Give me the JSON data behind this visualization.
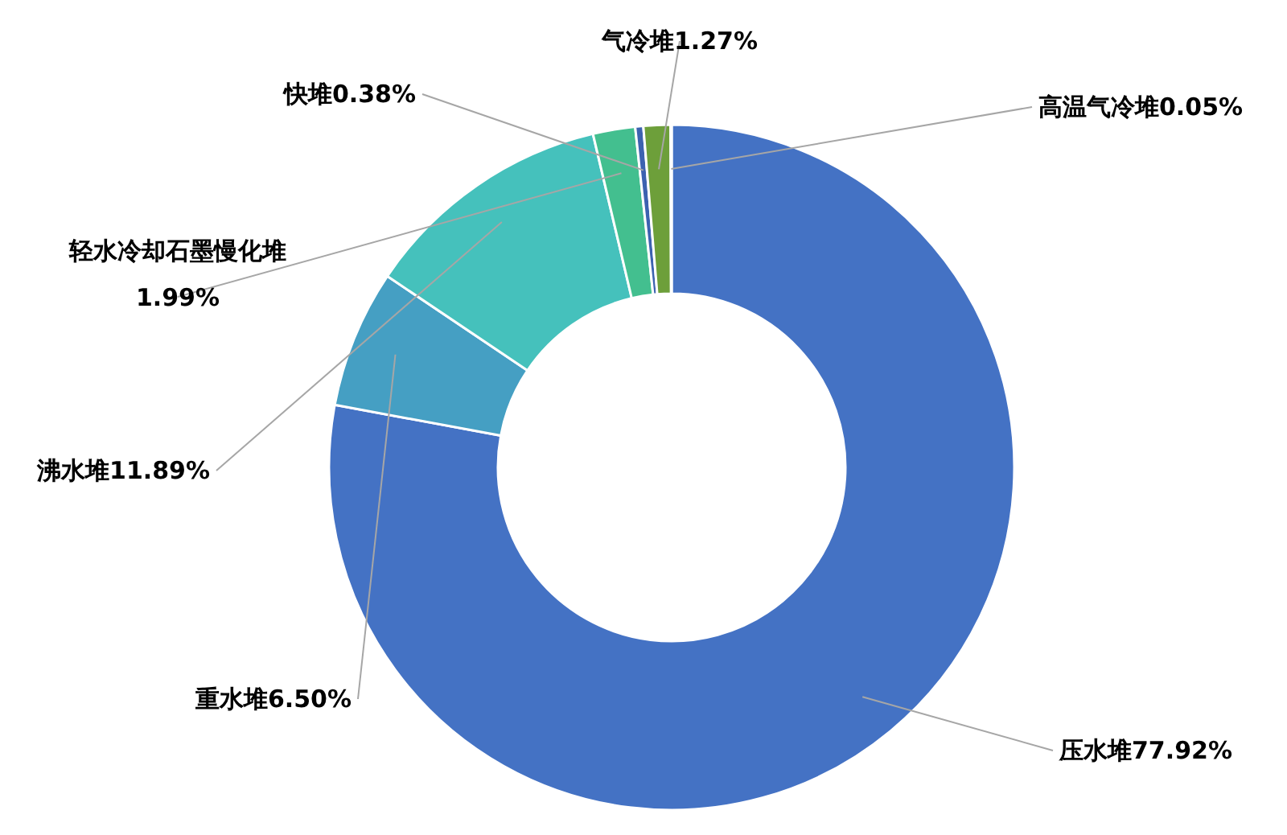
{
  "chart_data": {
    "type": "donut",
    "categories": [
      "压水堆",
      "重水堆",
      "沸水堆",
      "轻水冷却石墨慢化堆",
      "快堆",
      "气冷堆",
      "高温气冷堆"
    ],
    "values": [
      77.92,
      6.5,
      11.89,
      1.99,
      0.38,
      1.27,
      0.05
    ],
    "value_labels": [
      "77.92%",
      "6.50%",
      "11.89%",
      "1.99%",
      "0.38%",
      "1.27%",
      "0.05%"
    ],
    "colors": [
      "#4472c4",
      "#459fc3",
      "#45c1bc",
      "#43bf8f",
      "#3c62b0",
      "#6d9f3a",
      "#a5a5a5"
    ]
  }
}
